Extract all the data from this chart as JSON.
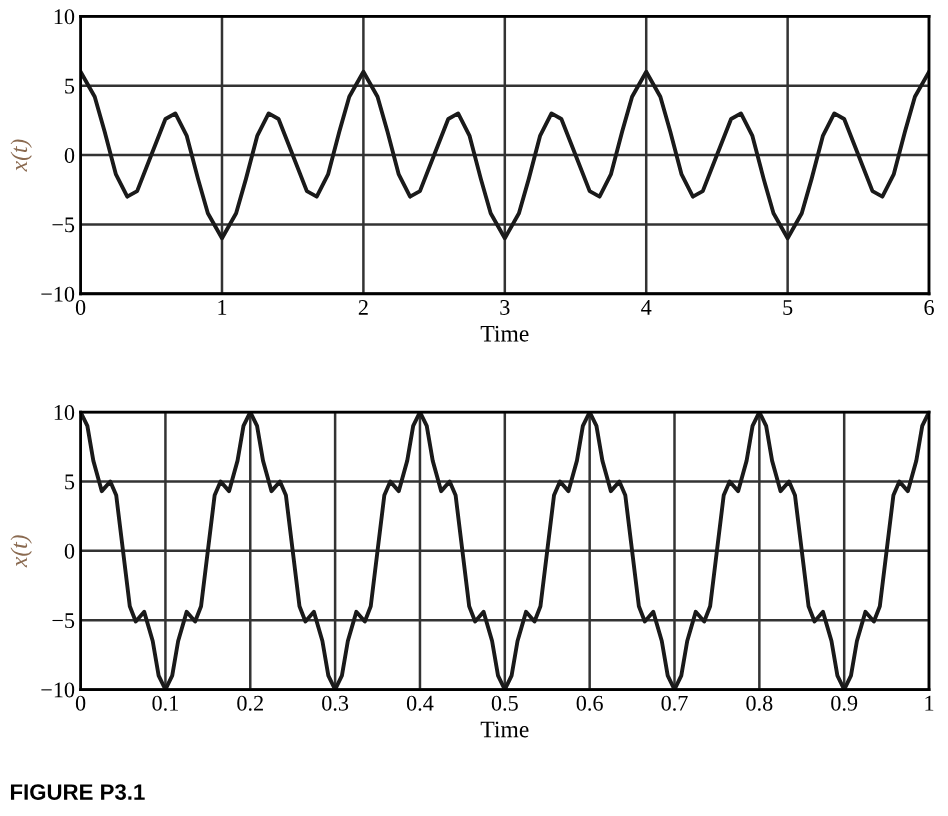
{
  "chart_data": [
    {
      "type": "line",
      "xlabel": "Time",
      "ylabel": "x(t)",
      "xlim": [
        0,
        6
      ],
      "ylim": [
        -10,
        10
      ],
      "xticks": [
        0,
        1,
        2,
        3,
        4,
        5,
        6
      ],
      "yticks": [
        -10,
        -5,
        0,
        5,
        10
      ],
      "grid": true,
      "legend": false,
      "marker": "none",
      "line_style": "solid",
      "series": [
        {
          "color": "#1a1a1a",
          "x": [
            0,
            0.1,
            0.17,
            0.25,
            0.33,
            0.4,
            0.5,
            0.6,
            0.67,
            0.75,
            0.83,
            0.9,
            1,
            1.1,
            1.17,
            1.25,
            1.33,
            1.4,
            1.5,
            1.6,
            1.67,
            1.75,
            1.83,
            1.9,
            2,
            2.1,
            2.17,
            2.25,
            2.33,
            2.4,
            2.5,
            2.6,
            2.67,
            2.75,
            2.83,
            2.9,
            3,
            3.1,
            3.17,
            3.25,
            3.33,
            3.4,
            3.5,
            3.6,
            3.67,
            3.75,
            3.83,
            3.9,
            4,
            4.1,
            4.17,
            4.25,
            4.33,
            4.4,
            4.5,
            4.6,
            4.67,
            4.75,
            4.83,
            4.9,
            5,
            5.1,
            5.17,
            5.25,
            5.33,
            5.4,
            5.5,
            5.6,
            5.67,
            5.75,
            5.83,
            5.9,
            6
          ],
          "values": [
            6,
            4.2,
            1.7,
            -1.4,
            -3,
            -2.6,
            0,
            2.6,
            3,
            1.4,
            -1.7,
            -4.2,
            -6,
            -4.2,
            -1.7,
            1.4,
            3,
            2.6,
            0,
            -2.6,
            -3,
            -1.4,
            1.7,
            4.2,
            6,
            4.2,
            1.7,
            -1.4,
            -3,
            -2.6,
            0,
            2.6,
            3,
            1.4,
            -1.7,
            -4.2,
            -6,
            -4.2,
            -1.7,
            1.4,
            3,
            2.6,
            0,
            -2.6,
            -3,
            -1.4,
            1.7,
            4.2,
            6,
            4.2,
            1.7,
            -1.4,
            -3,
            -2.6,
            0,
            2.6,
            3,
            1.4,
            -1.7,
            -4.2,
            -6,
            -4.2,
            -1.7,
            1.4,
            3,
            2.6,
            0,
            -2.6,
            -3,
            -1.4,
            1.7,
            4.2,
            6
          ]
        }
      ]
    },
    {
      "type": "line",
      "xlabel": "Time",
      "ylabel": "x(t)",
      "xlim": [
        0,
        1
      ],
      "ylim": [
        -10,
        10
      ],
      "xticks": [
        0,
        0.1,
        0.2,
        0.3,
        0.4,
        0.5,
        0.6,
        0.7,
        0.8,
        0.9,
        1
      ],
      "yticks": [
        -10,
        -5,
        0,
        5,
        10
      ],
      "grid": true,
      "legend": false,
      "marker": "none",
      "line_style": "solid",
      "annotations": [
        "FIGURE P3.1"
      ],
      "series": [
        {
          "color": "#1a1a1a",
          "x": [
            0,
            0.008,
            0.015,
            0.025,
            0.035,
            0.042,
            0.05,
            0.058,
            0.065,
            0.075,
            0.085,
            0.092,
            0.1,
            0.108,
            0.115,
            0.125,
            0.135,
            0.142,
            0.15,
            0.158,
            0.165,
            0.175,
            0.185,
            0.192,
            0.2,
            0.208,
            0.215,
            0.225,
            0.235,
            0.242,
            0.25,
            0.258,
            0.265,
            0.275,
            0.285,
            0.292,
            0.3,
            0.308,
            0.315,
            0.325,
            0.335,
            0.342,
            0.35,
            0.358,
            0.365,
            0.375,
            0.385,
            0.392,
            0.4,
            0.408,
            0.415,
            0.425,
            0.435,
            0.442,
            0.45,
            0.458,
            0.465,
            0.475,
            0.485,
            0.492,
            0.5,
            0.508,
            0.515,
            0.525,
            0.535,
            0.542,
            0.55,
            0.558,
            0.565,
            0.575,
            0.585,
            0.592,
            0.6,
            0.608,
            0.615,
            0.625,
            0.635,
            0.642,
            0.65,
            0.658,
            0.665,
            0.675,
            0.685,
            0.692,
            0.7,
            0.708,
            0.715,
            0.725,
            0.735,
            0.742,
            0.75,
            0.758,
            0.765,
            0.775,
            0.785,
            0.792,
            0.8,
            0.808,
            0.815,
            0.825,
            0.835,
            0.842,
            0.85,
            0.858,
            0.865,
            0.875,
            0.885,
            0.892,
            0.9,
            0.908,
            0.915,
            0.925,
            0.935,
            0.942,
            0.95,
            0.958,
            0.965,
            0.975,
            0.985,
            0.992,
            1
          ],
          "values": [
            10,
            9,
            6.5,
            4.3,
            5,
            4,
            0,
            -4,
            -5.1,
            -4.4,
            -6.5,
            -9,
            -10,
            -9,
            -6.5,
            -4.4,
            -5.1,
            -4,
            0,
            4,
            5,
            4.3,
            6.5,
            9,
            10,
            9,
            6.5,
            4.3,
            5,
            4,
            0,
            -4,
            -5.1,
            -4.4,
            -6.5,
            -9,
            -10,
            -9,
            -6.5,
            -4.4,
            -5.1,
            -4,
            0,
            4,
            5,
            4.3,
            6.5,
            9,
            10,
            9,
            6.5,
            4.3,
            5,
            4,
            0,
            -4,
            -5.1,
            -4.4,
            -6.5,
            -9,
            -10,
            -9,
            -6.5,
            -4.4,
            -5.1,
            -4,
            0,
            4,
            5,
            4.3,
            6.5,
            9,
            10,
            9,
            6.5,
            4.3,
            5,
            4,
            0,
            -4,
            -5.1,
            -4.4,
            -6.5,
            -9,
            -10,
            -9,
            -6.5,
            -4.4,
            -5.1,
            -4,
            0,
            4,
            5,
            4.3,
            6.5,
            9,
            10,
            9,
            6.5,
            4.3,
            5,
            4,
            0,
            -4,
            -5.1,
            -4.4,
            -6.5,
            -9,
            -10,
            -9,
            -6.5,
            -4.4,
            -5.1,
            -4,
            0,
            4,
            5,
            4.3,
            6.5,
            9,
            10
          ]
        }
      ]
    }
  ]
}
